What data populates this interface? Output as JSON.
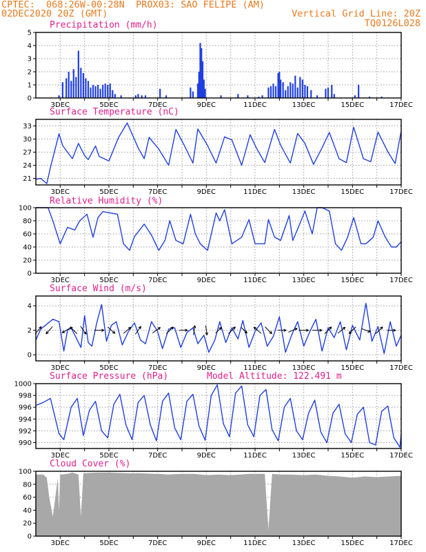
{
  "header": {
    "line1_left": "CPTEC:  068:26W-00:28N  PROX03: SAO FELIPE (AM)",
    "line2_left": "02DEC2020 20Z (GMT)",
    "line2_right": "Vertical Grid Line: 20Z",
    "line3_right": "TQ0126L028"
  },
  "colors": {
    "header_text": "#e87a1e",
    "panel_title": "#e0208c",
    "series_line": "#1f3fe0",
    "cloud_fill": "#a8a8a8",
    "grid": "#9a9a9a"
  },
  "chart_data": [
    {
      "type": "bar",
      "title": "Precipitation (mm/h)",
      "x_tick_labels": [
        "3DEC",
        "5DEC",
        "7DEC",
        "9DEC",
        "11DEC",
        "13DEC",
        "15DEC",
        "17DEC"
      ],
      "ylim": [
        0,
        5
      ],
      "y_ticks": [
        0,
        1,
        2,
        3,
        4,
        5
      ],
      "grid": true,
      "events": [
        {
          "day": 2.95,
          "value": 0.2
        },
        {
          "day": 3.1,
          "value": 1.2
        },
        {
          "day": 3.25,
          "value": 1.5
        },
        {
          "day": 3.35,
          "value": 2.0
        },
        {
          "day": 3.45,
          "value": 1.3
        },
        {
          "day": 3.55,
          "value": 2.2
        },
        {
          "day": 3.65,
          "value": 1.6
        },
        {
          "day": 3.75,
          "value": 3.6
        },
        {
          "day": 3.85,
          "value": 2.3
        },
        {
          "day": 3.95,
          "value": 1.9
        },
        {
          "day": 4.05,
          "value": 1.5
        },
        {
          "day": 4.15,
          "value": 1.3
        },
        {
          "day": 4.25,
          "value": 0.8
        },
        {
          "day": 4.35,
          "value": 1.0
        },
        {
          "day": 4.45,
          "value": 0.9
        },
        {
          "day": 4.55,
          "value": 1.0
        },
        {
          "day": 4.65,
          "value": 0.7
        },
        {
          "day": 4.75,
          "value": 1.0
        },
        {
          "day": 4.85,
          "value": 1.1
        },
        {
          "day": 4.95,
          "value": 1.0
        },
        {
          "day": 5.05,
          "value": 1.1
        },
        {
          "day": 5.15,
          "value": 0.6
        },
        {
          "day": 5.25,
          "value": 0.3
        },
        {
          "day": 5.5,
          "value": 0.2
        },
        {
          "day": 6.1,
          "value": 0.2
        },
        {
          "day": 6.2,
          "value": 0.3
        },
        {
          "day": 6.35,
          "value": 0.2
        },
        {
          "day": 6.5,
          "value": 0.2
        },
        {
          "day": 7.1,
          "value": 0.7
        },
        {
          "day": 7.35,
          "value": 0.2
        },
        {
          "day": 8.35,
          "value": 0.8
        },
        {
          "day": 8.45,
          "value": 0.5
        },
        {
          "day": 8.65,
          "value": 1.1
        },
        {
          "day": 8.7,
          "value": 2.0
        },
        {
          "day": 8.75,
          "value": 4.2
        },
        {
          "day": 8.8,
          "value": 3.8
        },
        {
          "day": 8.85,
          "value": 2.8
        },
        {
          "day": 8.9,
          "value": 1.4
        },
        {
          "day": 8.95,
          "value": 0.7
        },
        {
          "day": 9.6,
          "value": 0.2
        },
        {
          "day": 10.3,
          "value": 0.3
        },
        {
          "day": 10.7,
          "value": 0.2
        },
        {
          "day": 11.15,
          "value": 0.1
        },
        {
          "day": 11.3,
          "value": 0.2
        },
        {
          "day": 11.55,
          "value": 0.8
        },
        {
          "day": 11.65,
          "value": 0.9
        },
        {
          "day": 11.75,
          "value": 1.1
        },
        {
          "day": 11.85,
          "value": 0.9
        },
        {
          "day": 11.95,
          "value": 1.9
        },
        {
          "day": 12.0,
          "value": 2.0
        },
        {
          "day": 12.05,
          "value": 1.4
        },
        {
          "day": 12.15,
          "value": 1.2
        },
        {
          "day": 12.25,
          "value": 0.6
        },
        {
          "day": 12.35,
          "value": 0.9
        },
        {
          "day": 12.45,
          "value": 1.2
        },
        {
          "day": 12.55,
          "value": 1.1
        },
        {
          "day": 12.65,
          "value": 1.7
        },
        {
          "day": 12.75,
          "value": 0.8
        },
        {
          "day": 12.85,
          "value": 1.6
        },
        {
          "day": 12.95,
          "value": 1.4
        },
        {
          "day": 13.05,
          "value": 1.0
        },
        {
          "day": 13.15,
          "value": 0.9
        },
        {
          "day": 13.3,
          "value": 0.6
        },
        {
          "day": 13.55,
          "value": 0.2
        },
        {
          "day": 13.9,
          "value": 0.7
        },
        {
          "day": 14.0,
          "value": 0.8
        },
        {
          "day": 14.15,
          "value": 1.0
        },
        {
          "day": 14.25,
          "value": 0.3
        },
        {
          "day": 15.1,
          "value": 0.2
        },
        {
          "day": 15.25,
          "value": 1.0
        },
        {
          "day": 15.7,
          "value": 0.1
        },
        {
          "day": 16.2,
          "value": 0.1
        }
      ]
    },
    {
      "type": "line",
      "title": "Surface Temperature (nC)",
      "x_tick_labels": [
        "3DEC",
        "5DEC",
        "7DEC",
        "9DEC",
        "11DEC",
        "13DEC",
        "15DEC",
        "17DEC"
      ],
      "ylim": [
        19.5,
        34.5
      ],
      "y_ticks": [
        21,
        24,
        27,
        30,
        33
      ],
      "grid": true,
      "series": [
        {
          "x": [
            2.0,
            2.2,
            2.45,
            2.6,
            2.95,
            3.1,
            3.5,
            3.75,
            4.0,
            4.15,
            4.45,
            4.6,
            5.0,
            5.4,
            5.75,
            6.2,
            6.45,
            6.65,
            7.05,
            7.45,
            7.75,
            8.1,
            8.45,
            8.65,
            9.05,
            9.4,
            9.75,
            10.05,
            10.45,
            10.8,
            11.05,
            11.4,
            11.8,
            12.05,
            12.45,
            12.75,
            13.05,
            13.4,
            13.75,
            14.05,
            14.45,
            14.75,
            15.05,
            15.45,
            15.75,
            16.05,
            16.45,
            16.75,
            17.0
          ],
          "y": [
            20.8,
            21.0,
            19.8,
            23.5,
            31.2,
            28.5,
            25.5,
            29.0,
            26.2,
            25.3,
            28.4,
            26.0,
            25.0,
            30.4,
            33.7,
            28.0,
            25.5,
            30.4,
            27.7,
            24.0,
            32.2,
            28.5,
            24.5,
            32.3,
            28.5,
            24.5,
            30.5,
            29.8,
            24.0,
            31.0,
            28.0,
            24.6,
            32.2,
            28.6,
            24.5,
            31.3,
            29.0,
            24.2,
            28.0,
            31.5,
            25.5,
            24.6,
            32.7,
            25.5,
            24.8,
            31.6,
            27.1,
            24.4,
            31.8
          ]
        }
      ]
    },
    {
      "type": "line",
      "title": "Relative Humidity (%)",
      "x_tick_labels": [
        "3DEC",
        "5DEC",
        "7DEC",
        "9DEC",
        "11DEC",
        "13DEC",
        "15DEC",
        "17DEC"
      ],
      "ylim": [
        0,
        100
      ],
      "y_ticks": [
        0,
        20,
        40,
        60,
        80,
        100
      ],
      "grid": true,
      "series": [
        {
          "x": [
            2.0,
            2.5,
            2.7,
            3.0,
            3.3,
            3.6,
            3.8,
            4.1,
            4.35,
            4.55,
            4.75,
            5.05,
            5.35,
            5.6,
            5.85,
            6.05,
            6.45,
            6.75,
            7.05,
            7.3,
            7.5,
            7.75,
            8.05,
            8.35,
            8.55,
            8.75,
            9.05,
            9.4,
            9.55,
            9.75,
            10.05,
            10.45,
            10.75,
            11.0,
            11.4,
            11.55,
            11.8,
            12.05,
            12.4,
            12.55,
            12.8,
            13.05,
            13.35,
            13.55,
            13.75,
            14.05,
            14.3,
            14.55,
            14.8,
            15.05,
            15.35,
            15.55,
            15.85,
            16.05,
            16.35,
            16.6,
            16.8,
            17.0
          ],
          "y": [
            100,
            100,
            80,
            45,
            70,
            66,
            80,
            90,
            55,
            85,
            94,
            92,
            90,
            45,
            35,
            56,
            75,
            58,
            35,
            50,
            80,
            50,
            45,
            90,
            60,
            45,
            35,
            92,
            80,
            97,
            45,
            55,
            82,
            45,
            45,
            82,
            55,
            50,
            88,
            50,
            72,
            95,
            60,
            100,
            100,
            95,
            45,
            35,
            55,
            85,
            45,
            45,
            55,
            80,
            55,
            40,
            40,
            48
          ]
        }
      ]
    },
    {
      "type": "line",
      "title": "Surface Wind (m/s)",
      "x_tick_labels": [
        "3DEC",
        "5DEC",
        "7DEC",
        "9DEC",
        "11DEC",
        "13DEC",
        "15DEC",
        "17DEC"
      ],
      "ylim": [
        -0.5,
        4.8
      ],
      "y_ticks": [
        0,
        2,
        4
      ],
      "grid": true,
      "series": [
        {
          "x": [
            2.0,
            2.2,
            2.45,
            2.7,
            2.95,
            3.15,
            3.3,
            3.45,
            3.65,
            3.85,
            4.0,
            4.15,
            4.3,
            4.5,
            4.7,
            4.9,
            5.1,
            5.3,
            5.55,
            5.8,
            6.05,
            6.3,
            6.5,
            6.75,
            7.0,
            7.2,
            7.45,
            7.7,
            7.95,
            8.2,
            8.45,
            8.65,
            8.9,
            9.1,
            9.35,
            9.55,
            9.8,
            10.05,
            10.3,
            10.5,
            10.75,
            11.0,
            11.25,
            11.5,
            11.75,
            12.0,
            12.25,
            12.5,
            12.75,
            13.0,
            13.25,
            13.5,
            13.75,
            14.0,
            14.25,
            14.5,
            14.75,
            15.0,
            15.3,
            15.55,
            15.8,
            16.05,
            16.3,
            16.55,
            16.8,
            17.0
          ],
          "y": [
            1.2,
            2.1,
            2.5,
            2.9,
            2.7,
            0.3,
            2.0,
            2.2,
            1.4,
            0.6,
            3.2,
            1.0,
            0.7,
            2.6,
            4.1,
            1.1,
            2.4,
            2.7,
            0.8,
            1.9,
            2.6,
            1.2,
            0.9,
            2.7,
            1.9,
            0.5,
            2.1,
            2.2,
            0.6,
            1.8,
            2.2,
            0.9,
            1.6,
            0.2,
            1.2,
            2.7,
            1.0,
            2.2,
            1.3,
            2.8,
            0.6,
            1.9,
            2.6,
            0.7,
            1.5,
            3.1,
            0.2,
            1.6,
            2.7,
            0.7,
            1.9,
            2.9,
            0.3,
            2.2,
            1.4,
            2.7,
            0.4,
            2.4,
            1.2,
            4.2,
            1.1,
            2.3,
            0.1,
            2.7,
            0.7,
            1.6
          ]
        },
        {
          "name": "wind_vectors",
          "x": [
            2.1,
            2.55,
            3.25,
            3.55,
            3.95,
            4.6,
            5.1,
            5.75,
            6.2,
            6.95,
            7.5,
            8.05,
            8.5,
            9.0,
            9.5,
            10.05,
            10.55,
            11.1,
            11.55,
            12.1,
            12.55,
            13.0,
            13.55,
            14.0,
            14.55,
            15.0,
            15.55,
            16.1,
            16.6
          ],
          "u": [
            0.6,
            -0.8,
            -1.0,
            -0.7,
            0.5,
            1.4,
            0.8,
            0.6,
            0.5,
            1.1,
            0.6,
            0.6,
            0.1,
            0.1,
            0.4,
            0.6,
            0.4,
            -0.6,
            0.5,
            0.6,
            0.7,
            0.8,
            0.9,
            0.6,
            0.6,
            -0.6,
            0.8,
            0.5,
            0.6
          ],
          "v": [
            0.7,
            -0.9,
            -0.6,
            0.7,
            -0.7,
            0.0,
            -0.7,
            0.5,
            0.7,
            0.8,
            0.6,
            0.0,
            0.7,
            -0.7,
            0.4,
            0.6,
            -0.4,
            0.5,
            -0.5,
            0.0,
            0.3,
            0.0,
            0.0,
            0.6,
            0.5,
            -0.6,
            -0.3,
            0.5,
            0.0
          ]
        }
      ]
    },
    {
      "type": "line",
      "title": "Surface Pressure (hPa)",
      "annotation": "Model Altitude: 122.491 m",
      "x_tick_labels": [
        "3DEC",
        "5DEC",
        "7DEC",
        "9DEC",
        "11DEC",
        "13DEC",
        "15DEC",
        "17DEC"
      ],
      "ylim": [
        989,
        1000
      ],
      "y_ticks": [
        990,
        992,
        994,
        996,
        998,
        1000
      ],
      "grid": true,
      "series": [
        {
          "x": [
            2.0,
            2.3,
            2.6,
            2.95,
            3.15,
            3.45,
            3.7,
            3.95,
            4.2,
            4.45,
            4.7,
            4.95,
            5.2,
            5.45,
            5.7,
            5.95,
            6.2,
            6.45,
            6.7,
            6.95,
            7.2,
            7.45,
            7.7,
            7.95,
            8.2,
            8.45,
            8.7,
            8.95,
            9.2,
            9.45,
            9.7,
            9.95,
            10.2,
            10.45,
            10.7,
            10.95,
            11.2,
            11.45,
            11.7,
            11.95,
            12.2,
            12.45,
            12.7,
            12.95,
            13.2,
            13.45,
            13.7,
            13.95,
            14.2,
            14.45,
            14.7,
            14.95,
            15.2,
            15.45,
            15.7,
            15.95,
            16.2,
            16.45,
            16.7,
            16.95,
            17.0
          ],
          "y": [
            996.3,
            996.8,
            997.5,
            991.5,
            990.5,
            996.0,
            997.5,
            991.2,
            995.5,
            997.0,
            992.0,
            990.8,
            996.5,
            998.2,
            993.0,
            990.5,
            996.8,
            998.0,
            993.0,
            990.3,
            997.0,
            998.4,
            992.5,
            990.5,
            997.0,
            998.2,
            992.8,
            990.4,
            998.0,
            999.8,
            993.2,
            991.0,
            998.4,
            999.6,
            993.0,
            991.0,
            998.0,
            999.0,
            992.2,
            990.3,
            996.0,
            997.5,
            992.0,
            990.5,
            995.0,
            997.2,
            991.8,
            990.0,
            995.0,
            996.5,
            991.5,
            990.0,
            994.8,
            996.0,
            990.0,
            989.6,
            995.3,
            996.2,
            990.8,
            989.2,
            991.5
          ]
        }
      ]
    },
    {
      "type": "area",
      "title": "Cloud Cover (%)",
      "x_tick_labels": [
        "3DEC",
        "5DEC",
        "7DEC",
        "9DEC",
        "11DEC",
        "13DEC",
        "15DEC",
        "17DEC"
      ],
      "ylim": [
        0,
        100
      ],
      "y_ticks": [
        0,
        20,
        40,
        60,
        80,
        100
      ],
      "grid": true,
      "series": [
        {
          "x": [
            2.0,
            2.3,
            2.45,
            2.55,
            2.7,
            2.8,
            2.9,
            2.95,
            3.0,
            3.3,
            3.5,
            3.75,
            3.85,
            3.95,
            4.5,
            5.0,
            5.8,
            6.3,
            6.9,
            7.1,
            7.4,
            8.0,
            8.5,
            9.0,
            9.5,
            10.0,
            10.8,
            11.0,
            11.4,
            11.55,
            11.7,
            12.0,
            12.5,
            13.0,
            13.5,
            14.0,
            14.5,
            15.0,
            15.5,
            16.0,
            16.5,
            17.0
          ],
          "y": [
            95,
            95,
            90,
            60,
            30,
            60,
            90,
            40,
            95,
            96,
            98,
            95,
            30,
            97,
            98,
            98,
            97,
            97,
            96,
            96,
            95,
            96,
            96,
            94,
            95,
            94,
            96,
            96,
            96,
            10,
            96,
            95,
            95,
            94,
            95,
            93,
            92,
            90,
            92,
            91,
            92,
            93
          ]
        }
      ]
    }
  ]
}
